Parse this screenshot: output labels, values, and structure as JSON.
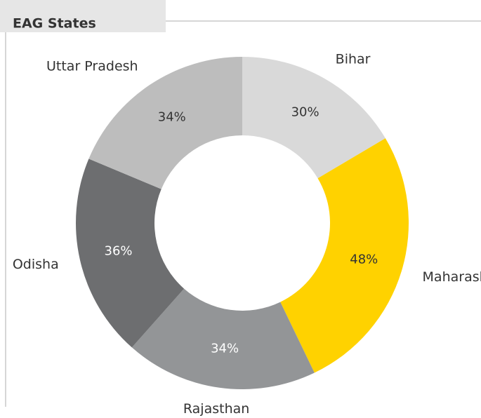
{
  "chart_data": {
    "type": "donut",
    "title": "EAG States",
    "categories": [
      "Bihar",
      "Maharashtra",
      "Rajasthan",
      "Odisha",
      "Uttar Pradesh"
    ],
    "values": [
      30,
      48,
      34,
      36,
      34
    ],
    "value_labels": [
      "30%",
      "48%",
      "34%",
      "36%",
      "34%"
    ],
    "colors": [
      "#d9d9d9",
      "#ffd200",
      "#939597",
      "#6d6e70",
      "#bdbdbd"
    ]
  }
}
